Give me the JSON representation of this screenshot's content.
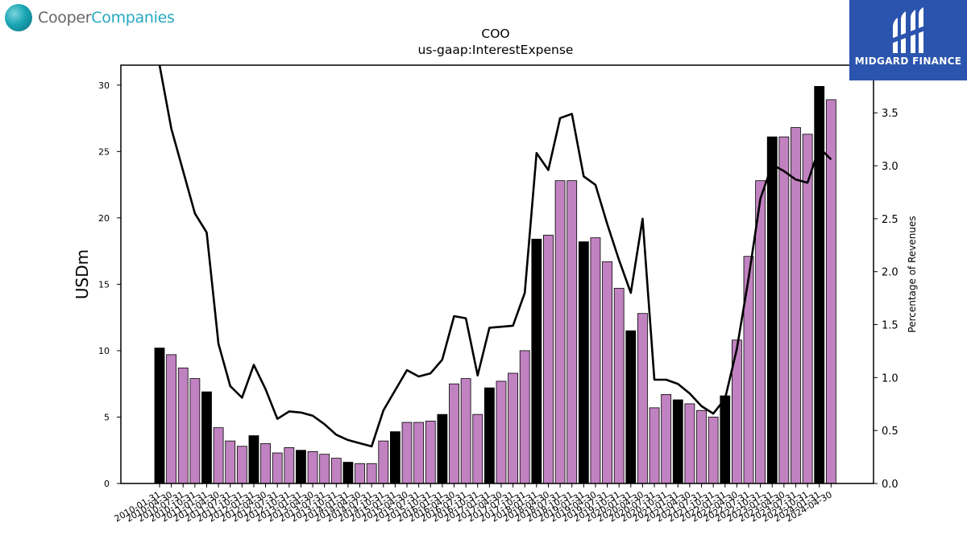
{
  "logos": {
    "left": {
      "part1": "Cooper",
      "part2": "Companies"
    },
    "right": {
      "brand": "MIDGARD FINANCE"
    }
  },
  "colors": {
    "bar_default": "#c182c1",
    "bar_highlight": "#000000",
    "line": "#000000"
  },
  "chart_data": {
    "type": "bar",
    "title": "COO",
    "subtitle": "us-gaap:InterestExpense",
    "ylabel": "USDm",
    "y2label": "Percentage of Revenues",
    "ylim": [
      0,
      31.5
    ],
    "y2lim": [
      0,
      3.95
    ],
    "yticks": [
      0,
      5,
      10,
      15,
      20,
      25,
      30
    ],
    "y2ticks": [
      "0.0",
      "0.5",
      "1.0",
      "1.5",
      "2.0",
      "2.5",
      "3.0",
      "3.5"
    ],
    "grid": false,
    "categories": [
      "2010-01-31",
      "2010-04-30",
      "2010-07-31",
      "2010-10-31",
      "2011-01-31",
      "2011-04-30",
      "2011-07-31",
      "2011-10-31",
      "2012-01-31",
      "2012-04-30",
      "2012-07-31",
      "2012-10-31",
      "2013-01-31",
      "2013-04-30",
      "2013-07-31",
      "2013-10-31",
      "2014-01-31",
      "2014-04-30",
      "2014-07-31",
      "2014-10-31",
      "2015-01-31",
      "2015-04-30",
      "2015-07-31",
      "2015-10-31",
      "2016-01-31",
      "2016-04-30",
      "2016-07-31",
      "2016-10-31",
      "2017-01-31",
      "2017-04-30",
      "2017-07-31",
      "2017-10-31",
      "2018-01-31",
      "2018-04-30",
      "2018-07-31",
      "2018-10-31",
      "2019-01-31",
      "2019-04-30",
      "2019-07-31",
      "2019-10-31",
      "2020-01-31",
      "2020-04-30",
      "2020-07-31",
      "2020-10-31",
      "2021-01-31",
      "2021-04-30",
      "2021-07-31",
      "2021-10-31",
      "2022-01-31",
      "2022-04-30",
      "2022-07-31",
      "2022-10-31",
      "2023-01-31",
      "2023-04-30",
      "2023-07-31",
      "2023-10-31",
      "2024-01-31",
      "2024-04-30"
    ],
    "xtick_labels": [
      "2010-01-31",
      "2010-04-30",
      "2010-07-31",
      "2010-10-31",
      "2011-01-31",
      "2011-04-30",
      "2011-07-31",
      "2011-10-31",
      "2012-01-31",
      "2012-04-30",
      "2012-07-31",
      "2012-10-31",
      "2013-01-31",
      "2013-04-30",
      "2013-07-31",
      "2013-10-31",
      "2014-01-31",
      "2014-04-30",
      "2014-07-31",
      "2014-10-31",
      "2015-01-31",
      "2015-04-30",
      "2015-07-31",
      "2015-10-31",
      "2016-01-31",
      "2016-04-30",
      "2016-07-31",
      "2016-10-31",
      "2017-01-31",
      "2017-04-30",
      "2017-07-31",
      "2017-10-31",
      "2018-01-31",
      "2018-04-30",
      "2018-07-31",
      "2018-10-31",
      "2019-01-31",
      "2019-04-30",
      "2019-07-31",
      "2019-10-31",
      "2020-01-31",
      "2020-04-30",
      "2020-07-31",
      "2020-10-31",
      "2021-01-31",
      "2021-04-30",
      "2021-07-31",
      "2021-10-31",
      "2022-01-31",
      "2022-04-30",
      "2022-07-31",
      "2022-10-31",
      "2023-01-31",
      "2023-04-30",
      "2023-07-31",
      "2023-10-31",
      "2024-01-31",
      "2024-04-30"
    ],
    "series": [
      {
        "type": "bar",
        "axis": "left",
        "values": [
          10.2,
          9.7,
          8.7,
          7.9,
          6.9,
          4.2,
          3.2,
          2.8,
          3.6,
          3.0,
          2.3,
          2.7,
          2.5,
          2.4,
          2.2,
          1.9,
          1.6,
          1.5,
          1.5,
          3.2,
          3.9,
          4.6,
          4.6,
          4.7,
          5.2,
          7.5,
          7.9,
          5.2,
          7.2,
          7.7,
          8.3,
          10.0,
          18.4,
          18.7,
          22.8,
          22.8,
          18.2,
          18.5,
          16.7,
          14.7,
          11.5,
          12.8,
          5.7,
          6.7,
          6.3,
          6.0,
          5.5,
          5.0,
          6.6,
          10.8,
          17.1,
          22.8,
          26.1,
          26.1,
          26.8,
          26.3,
          29.9,
          28.9
        ],
        "highlight_indices": [
          0,
          4,
          8,
          12,
          16,
          20,
          24,
          28,
          32,
          36,
          40,
          44,
          48,
          52,
          56
        ]
      },
      {
        "type": "line",
        "axis": "right",
        "values": [
          3.95,
          3.35,
          2.95,
          2.55,
          2.37,
          1.32,
          0.92,
          0.81,
          1.12,
          0.89,
          0.61,
          0.68,
          0.67,
          0.64,
          0.56,
          0.46,
          0.41,
          0.38,
          0.35,
          0.69,
          0.88,
          1.07,
          1.01,
          1.04,
          1.17,
          1.58,
          1.56,
          1.02,
          1.47,
          1.48,
          1.49,
          1.8,
          3.12,
          2.96,
          3.45,
          3.49,
          2.9,
          2.82,
          2.45,
          2.11,
          1.8,
          2.5,
          0.98,
          0.98,
          0.94,
          0.85,
          0.73,
          0.66,
          0.8,
          1.27,
          1.94,
          2.69,
          3.01,
          2.95,
          2.87,
          2.84,
          3.17,
          3.06
        ]
      }
    ]
  }
}
